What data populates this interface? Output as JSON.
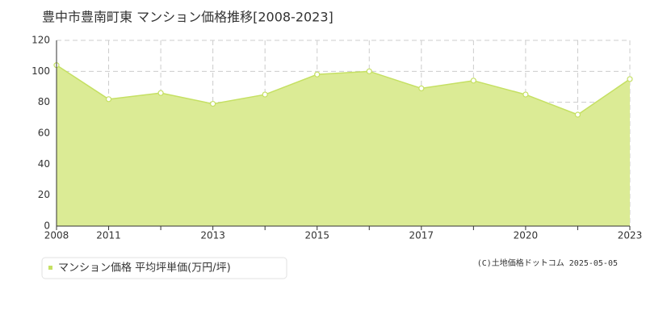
{
  "chart_data": {
    "type": "area",
    "title": "豊中市豊南町東 マンション価格推移[2008-2023]",
    "categories": [
      "2008",
      "2011",
      null,
      "2013",
      null,
      "2015",
      null,
      "2017",
      null,
      "2020",
      null,
      "2023"
    ],
    "series": [
      {
        "name": "マンション価格 平均坪単価(万円/坪)",
        "color": "#c5e063",
        "values": [
          104,
          82,
          86,
          79,
          85,
          98,
          100,
          89,
          94,
          85,
          72,
          95
        ]
      }
    ],
    "ylim": [
      0,
      120
    ],
    "yticks": [
      0,
      20,
      40,
      60,
      80,
      100,
      120
    ],
    "grid": true,
    "source": "(C)土地価格ドットコム 2025-05-05"
  }
}
